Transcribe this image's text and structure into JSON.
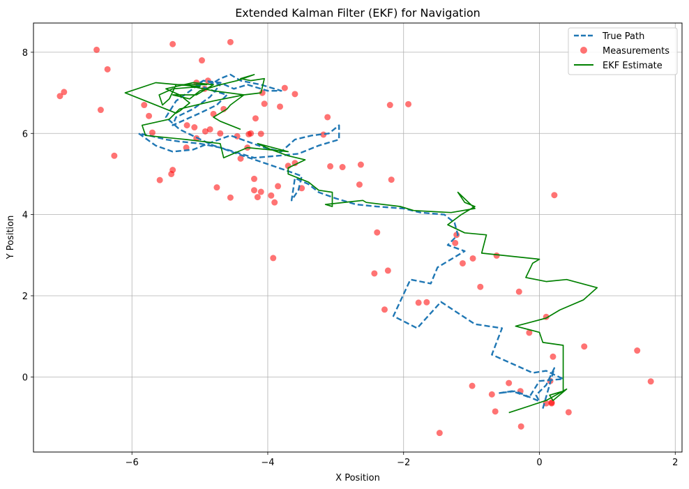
{
  "chart_data": {
    "type": "line",
    "title": "Extended Kalman Filter (EKF) for Navigation",
    "xlabel": "X Position",
    "ylabel": "Y Position",
    "xlim": [
      -7.45,
      2.1
    ],
    "ylim": [
      -1.85,
      8.72
    ],
    "x_ticks": [
      -6,
      -4,
      -2,
      0,
      2
    ],
    "y_ticks": [
      0,
      2,
      4,
      6,
      8
    ],
    "grid": true,
    "legend_position": "upper right",
    "series": [
      {
        "name": "True Path",
        "kind": "line",
        "style": "dashed",
        "color": "#1f77b4",
        "x": [
          0.05,
          0.22,
          0.1,
          -0.05,
          0.0,
          -0.35,
          -0.6,
          -0.4,
          -0.15,
          0.0,
          0.35,
          0.1,
          -0.1,
          -0.7,
          -0.55,
          -0.95,
          -1.45,
          -1.8,
          -2.15,
          -1.9,
          -1.6,
          -1.5,
          -1.25,
          -1.1,
          -1.35,
          -1.2,
          -1.25,
          -1.4,
          -1.75,
          -2.0,
          -2.4,
          -2.7,
          -3.0,
          -3.25,
          -3.4,
          -3.6,
          -3.65,
          -3.55,
          -3.5,
          -3.75,
          -4.1,
          -4.45,
          -4.7,
          -5.0,
          -5.3,
          -5.5,
          -5.75,
          -5.9,
          -5.65,
          -5.4,
          -5.1,
          -4.8,
          -4.55,
          -4.3,
          -4.05,
          -3.8,
          -3.6,
          -3.35,
          -3.1,
          -2.95,
          -2.95,
          -3.25,
          -3.55,
          -3.85,
          -4.2,
          -4.5,
          -4.8,
          -5.05,
          -5.3,
          -5.5,
          -5.35,
          -5.1,
          -4.95,
          -4.7,
          -4.85,
          -5.1,
          -5.35,
          -5.4,
          -5.2,
          -5.0,
          -4.75,
          -4.6,
          -4.8,
          -5.05,
          -4.95,
          -4.7,
          -4.5,
          -4.3,
          -4.0,
          -3.8,
          -4.1,
          -4.4,
          -4.55,
          -4.7,
          -4.85
        ],
        "y": [
          -0.78,
          0.22,
          -0.2,
          -0.45,
          -0.6,
          -0.35,
          -0.4,
          -0.35,
          -0.5,
          -0.1,
          -0.05,
          0.15,
          0.1,
          0.55,
          1.2,
          1.3,
          1.85,
          1.2,
          1.5,
          2.4,
          2.3,
          2.7,
          2.95,
          3.1,
          3.25,
          3.5,
          3.8,
          4.0,
          4.05,
          4.15,
          4.2,
          4.25,
          4.4,
          4.55,
          4.75,
          4.9,
          4.35,
          4.6,
          4.95,
          5.1,
          5.3,
          5.5,
          5.65,
          5.75,
          5.8,
          5.85,
          5.95,
          6.0,
          5.7,
          5.55,
          5.6,
          5.8,
          5.95,
          5.8,
          5.65,
          5.55,
          5.85,
          5.95,
          6.0,
          6.2,
          5.85,
          5.7,
          5.5,
          5.45,
          5.4,
          5.55,
          5.7,
          5.9,
          6.1,
          6.4,
          6.8,
          7.1,
          7.3,
          7.2,
          6.9,
          6.6,
          6.4,
          6.2,
          6.35,
          6.5,
          6.7,
          6.95,
          7.05,
          7.2,
          7.3,
          7.25,
          7.1,
          7.2,
          7.05,
          7.05,
          7.2,
          7.3,
          7.45,
          7.35,
          7.2
        ]
      },
      {
        "name": "Measurements",
        "kind": "scatter",
        "color": "#ff0000",
        "opacity": 0.55,
        "x": [
          -6.52,
          -5.4,
          -4.55,
          -4.97,
          -6.36,
          -7.0,
          -6.46,
          -5.05,
          -4.88,
          -4.93,
          -5.82,
          -5.75,
          -6.26,
          -5.7,
          -5.4,
          -5.42,
          -5.59,
          -5.19,
          -5.08,
          -4.92,
          -5.05,
          -5.2,
          -4.65,
          -4.8,
          -4.85,
          -4.7,
          -4.45,
          -4.3,
          -4.25,
          -4.18,
          -4.1,
          -4.05,
          -4.08,
          -3.82,
          -3.75,
          -3.6,
          -3.6,
          -4.2,
          -4.15,
          -4.4,
          -3.7,
          -3.85,
          -3.9,
          -3.95,
          -4.1,
          -4.2,
          -4.28,
          -4.55,
          -4.75,
          -3.5,
          -3.12,
          -2.9,
          -2.63,
          -2.65,
          -2.18,
          -2.2,
          -1.93,
          -3.08,
          -3.18,
          -2.39,
          -2.43,
          -2.23,
          -2.28,
          -1.78,
          -1.66,
          -1.24,
          -1.22,
          -1.13,
          -0.98,
          -0.63,
          -0.87,
          -0.3,
          -0.15,
          0.1,
          0.2,
          0.16,
          0.66,
          1.44,
          1.64,
          0.18,
          0.43,
          0.1,
          0.18,
          -0.28,
          -0.45,
          -0.7,
          -0.65,
          -0.99,
          -1.47,
          -0.27,
          -3.92,
          -7.06,
          0.22
        ],
        "y": [
          8.06,
          8.2,
          8.25,
          7.8,
          7.58,
          7.02,
          6.58,
          7.25,
          7.3,
          7.1,
          6.7,
          6.43,
          5.45,
          6.02,
          5.1,
          5.0,
          4.85,
          6.2,
          6.15,
          6.05,
          5.88,
          5.65,
          6.6,
          6.48,
          6.1,
          6.0,
          5.93,
          5.65,
          6.0,
          6.37,
          5.99,
          6.73,
          7.0,
          6.66,
          7.12,
          6.97,
          5.27,
          4.6,
          4.43,
          5.38,
          5.2,
          4.7,
          4.3,
          4.47,
          4.56,
          4.88,
          5.98,
          4.42,
          4.67,
          4.65,
          6.4,
          5.17,
          5.23,
          4.74,
          4.86,
          6.7,
          6.72,
          5.19,
          5.97,
          3.56,
          2.55,
          2.62,
          1.66,
          1.83,
          1.84,
          3.3,
          3.5,
          2.8,
          2.92,
          2.99,
          2.22,
          2.1,
          1.09,
          1.48,
          0.5,
          -0.1,
          0.75,
          0.65,
          -0.11,
          -0.63,
          -0.87,
          -0.65,
          -0.65,
          -0.35,
          -0.15,
          -0.43,
          -0.85,
          -0.22,
          -1.38,
          -1.22,
          2.93,
          6.92,
          4.48
        ]
      },
      {
        "name": "EKF Estimate",
        "kind": "line",
        "style": "solid",
        "color": "#008000",
        "x": [
          -0.45,
          0.1,
          0.4,
          0.2,
          0.15,
          0.35,
          0.35,
          0.05,
          0.0,
          -0.35,
          0.1,
          0.3,
          0.65,
          0.85,
          0.4,
          0.1,
          -0.2,
          -0.1,
          0.0,
          -0.85,
          -0.78,
          -1.1,
          -1.35,
          -1.15,
          -0.95,
          -1.1,
          -1.2,
          -0.95,
          -1.3,
          -1.85,
          -2.05,
          -2.55,
          -2.6,
          -3.15,
          -3.05,
          -3.05,
          -3.25,
          -3.4,
          -3.7,
          -3.7,
          -3.45,
          -3.7,
          -3.95,
          -4.15,
          -3.7,
          -4.3,
          -4.65,
          -4.7,
          -5.2,
          -5.8,
          -5.85,
          -5.45,
          -5.3,
          -4.8,
          -4.35,
          -4.8,
          -5.1,
          -5.2,
          -4.9,
          -5.35,
          -5.45,
          -5.55,
          -5.6,
          -5.4,
          -5.0,
          -5.65,
          -6.1,
          -5.8,
          -5.35,
          -5.3,
          -5.15,
          -5.3,
          -5.5,
          -5.1,
          -4.8,
          -4.95,
          -5.05,
          -5.4,
          -5.15,
          -5.0,
          -4.7,
          -4.45,
          -4.2,
          -4.4,
          -4.25,
          -4.05,
          -4.1,
          -4.35,
          -4.55,
          -4.6,
          -4.8,
          -4.7,
          -4.4
        ],
        "y": [
          -0.88,
          -0.58,
          -0.3,
          -0.58,
          -0.45,
          -0.35,
          0.78,
          0.85,
          1.1,
          1.25,
          1.45,
          1.65,
          1.9,
          2.2,
          2.4,
          2.35,
          2.45,
          2.8,
          2.9,
          3.05,
          3.5,
          3.55,
          3.75,
          4.0,
          4.2,
          4.3,
          4.55,
          4.15,
          4.05,
          4.1,
          4.2,
          4.3,
          4.35,
          4.25,
          4.2,
          4.55,
          4.6,
          4.8,
          5.0,
          5.15,
          5.35,
          5.45,
          5.6,
          5.75,
          5.55,
          5.65,
          5.4,
          5.75,
          5.85,
          5.95,
          6.2,
          6.35,
          6.6,
          6.8,
          6.95,
          7.05,
          7.15,
          7.2,
          7.2,
          7.2,
          6.85,
          6.7,
          6.95,
          7.1,
          7.15,
          7.25,
          7.0,
          6.8,
          6.5,
          6.55,
          6.75,
          6.95,
          7.1,
          7.25,
          7.2,
          7.05,
          6.95,
          6.95,
          6.85,
          7.05,
          7.2,
          7.3,
          7.45,
          7.35,
          7.3,
          7.35,
          7.0,
          6.95,
          6.7,
          6.6,
          6.4,
          6.3,
          6.1
        ]
      }
    ]
  }
}
